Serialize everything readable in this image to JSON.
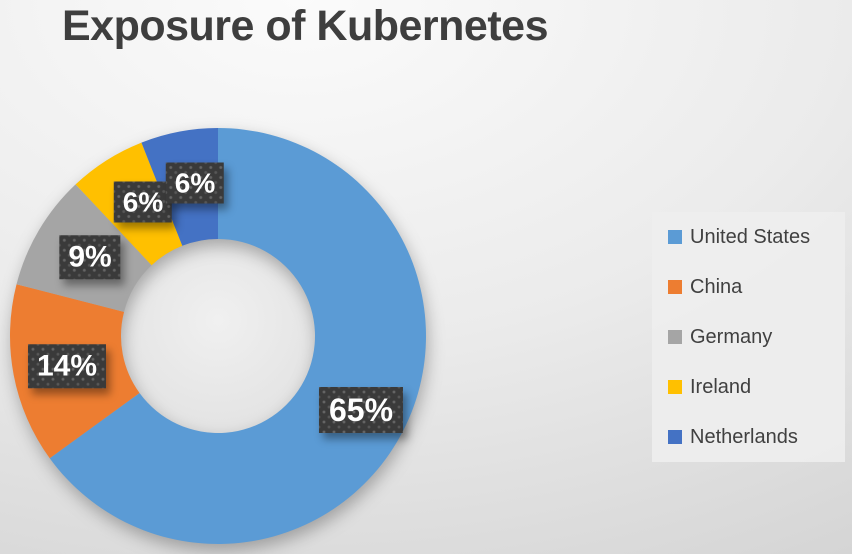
{
  "header": {
    "title": "Exposure of Kubernetes"
  },
  "chart_data": {
    "type": "pie",
    "subtype": "donut",
    "title": "Exposure of Kubernetes",
    "categories": [
      "United States",
      "China",
      "Germany",
      "Ireland",
      "Netherlands"
    ],
    "values": [
      65,
      14,
      9,
      6,
      6
    ],
    "unit": "%",
    "data_labels": [
      "65%",
      "14%",
      "9%",
      "6%",
      "6%"
    ],
    "colors": [
      "#5B9BD5",
      "#ED7D31",
      "#A5A5A5",
      "#FFC000",
      "#4472C4"
    ],
    "start_angle_deg": 0,
    "direction": "clockwise",
    "legend_position": "right",
    "grid": false,
    "label_style": {
      "background": "#3A3A3A",
      "pattern": "dotted",
      "text_color": "#FFFFFF"
    },
    "hole_color_center": "#F0F0F0",
    "hole_color_edge": "#DEDEDE",
    "title_color": "#3E3E3E",
    "legend_text_color": "#404040"
  }
}
